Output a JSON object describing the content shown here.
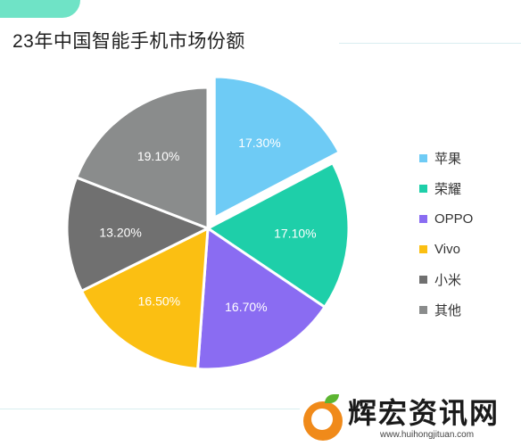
{
  "chart_data": {
    "type": "pie",
    "title": "23年中国智能手机市场份额",
    "slices": [
      {
        "label": "苹果",
        "value": 17.3,
        "display": "17.30%",
        "color": "#6ecbf5",
        "exploded": true
      },
      {
        "label": "荣耀",
        "value": 17.1,
        "display": "17.10%",
        "color": "#1ecfa9",
        "exploded": false
      },
      {
        "label": "OPPO",
        "value": 16.7,
        "display": "16.70%",
        "color": "#8a6cf2",
        "exploded": false
      },
      {
        "label": "Vivo",
        "value": 16.5,
        "display": "16.50%",
        "color": "#fbbf12",
        "exploded": false
      },
      {
        "label": "小米",
        "value": 13.2,
        "display": "13.20%",
        "color": "#707070",
        "exploded": false
      },
      {
        "label": "其他",
        "value": 19.1,
        "display": "19.10%",
        "color": "#8a8c8c",
        "exploded": false
      }
    ],
    "legend_position": "right"
  },
  "watermark": {
    "name": "辉宏资讯网",
    "url": "www.huihongjituan.com"
  },
  "colors": {
    "accent_mint": "#6fe3c6",
    "orange": "#f08a1a",
    "leaf": "#5cb531"
  }
}
